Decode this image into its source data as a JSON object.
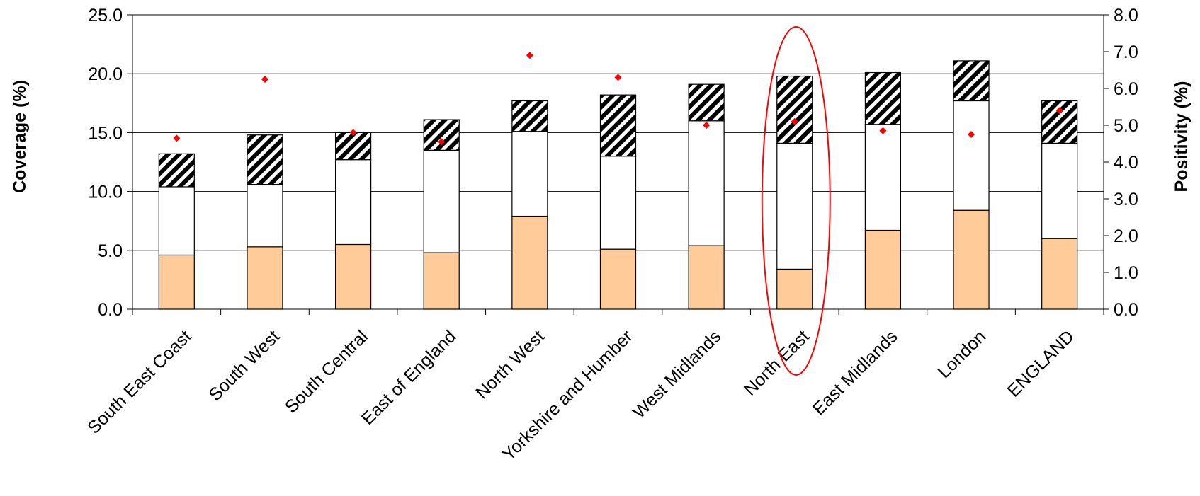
{
  "chart_data": {
    "type": "bar",
    "stacked": true,
    "title": "",
    "ylabel": "Coverage (%)",
    "y2label": "Positivity (%)",
    "ylim": [
      0,
      25
    ],
    "y2lim": [
      0,
      8
    ],
    "yticks": [
      "0.0",
      "5.0",
      "10.0",
      "15.0",
      "20.0",
      "25.0"
    ],
    "y2ticks": [
      "0.0",
      "1.0",
      "2.0",
      "3.0",
      "4.0",
      "5.0",
      "6.0",
      "7.0",
      "8.0"
    ],
    "grid": true,
    "legend": "none",
    "categories": [
      "South East Coast",
      "South West",
      "South Central",
      "East of England",
      "North West",
      "Yorkshire and Humber",
      "West Midlands",
      "North East",
      "East Midlands",
      "London",
      "ENGLAND"
    ],
    "series": [
      {
        "axis": "primary",
        "style": "solid",
        "color": "#FFCC99",
        "values": [
          4.6,
          5.3,
          5.5,
          4.8,
          7.9,
          5.1,
          5.4,
          3.4,
          6.7,
          8.4,
          6.0
        ]
      },
      {
        "axis": "primary",
        "style": "white",
        "color": "#FFFFFF",
        "values": [
          5.8,
          5.3,
          7.2,
          8.7,
          7.2,
          7.9,
          10.6,
          10.7,
          9.0,
          9.3,
          8.1
        ]
      },
      {
        "axis": "primary",
        "style": "hatched",
        "color": "#000000",
        "values": [
          2.8,
          4.2,
          2.3,
          2.6,
          2.6,
          5.2,
          3.1,
          5.7,
          4.4,
          3.4,
          3.6
        ]
      },
      {
        "axis": "secondary",
        "type": "scatter",
        "marker": "diamond",
        "color": "#FF0000",
        "values": [
          4.65,
          6.25,
          4.8,
          4.55,
          6.9,
          6.3,
          5.0,
          5.1,
          4.85,
          4.75,
          5.4
        ]
      }
    ],
    "annotations": [
      {
        "type": "ellipse",
        "color": "#FF0000",
        "category": "North East"
      }
    ]
  }
}
